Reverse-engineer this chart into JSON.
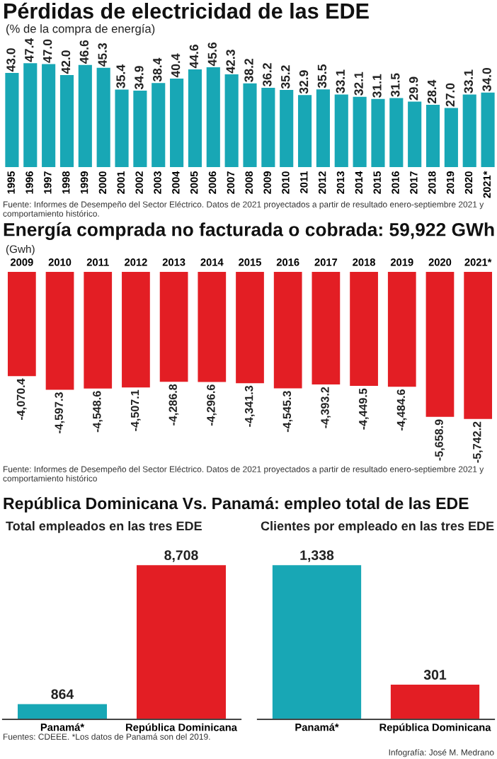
{
  "chart_data": [
    {
      "type": "bar",
      "title": "Pérdidas de electricidad de las EDE",
      "subtitle": "(% de la compra de energía)",
      "categories": [
        "1995",
        "1996",
        "1997",
        "1998",
        "1999",
        "2000",
        "2001",
        "2002",
        "2003",
        "2004",
        "2005",
        "2006",
        "2007",
        "2008",
        "2009",
        "2010",
        "2011",
        "2012",
        "2013",
        "2014",
        "2015",
        "2016",
        "2017",
        "2018",
        "2019",
        "2020",
        "2021*"
      ],
      "values": [
        43.0,
        47.4,
        47.0,
        42.0,
        46.6,
        45.3,
        35.4,
        34.9,
        38.4,
        40.4,
        44.6,
        45.6,
        42.3,
        38.2,
        36.2,
        35.2,
        32.9,
        35.5,
        33.1,
        32.1,
        31.1,
        31.5,
        29.9,
        28.4,
        27.0,
        33.1,
        34.0
      ],
      "value_labels": [
        "43.0",
        "47.4",
        "47.0",
        "42.0",
        "46.6",
        "45.3",
        "35.4",
        "34.9",
        "38.4",
        "40.4",
        "44.6",
        "45.6",
        "42.3",
        "38.2",
        "36.2",
        "35.2",
        "32.9",
        "35.5",
        "33.1",
        "32.1",
        "31.1",
        "31.5",
        "29.9",
        "28.4",
        "27.0",
        "33.1",
        "34.0"
      ],
      "color": "#18a7b5",
      "grid": false,
      "legend": false,
      "annotations": [
        "Fuente: Informes de Desempeño del Sector Eléctrico. Datos de 2021 proyectados a partir de resultado enero-septiembre 2021 y comportamiento histórico."
      ]
    },
    {
      "type": "bar",
      "title": "Energía comprada no facturada o cobrada: 59,922 GWh",
      "subtitle": "(Gwh)",
      "categories": [
        "2009",
        "2010",
        "2011",
        "2012",
        "2013",
        "2014",
        "2015",
        "2016",
        "2017",
        "2018",
        "2019",
        "2020",
        "2021*"
      ],
      "values": [
        -4070.4,
        -4597.3,
        -4548.6,
        -4507.1,
        -4286.8,
        -4296.6,
        -4341.3,
        -4545.3,
        -4393.2,
        -4449.5,
        -4484.6,
        -5658.9,
        -5742.2
      ],
      "value_labels": [
        "-4,070.4",
        "-4,597.3",
        "-4,548.6",
        "-4,507.1",
        "-4,286.8",
        "-4,296.6",
        "-4,341.3",
        "-4,545.3",
        "-4,393.2",
        "-4,449.5",
        "-4,484.6",
        "-5,658.9",
        "-5,742.2"
      ],
      "color": "#e31e24",
      "grid": false,
      "legend": false,
      "annotations": [
        "Fuente: Informes de Desempeño del Sector Eléctrico. Datos de 2021 proyectados a partir de resultado enero-septiembre 2021 y comportamiento histórico"
      ]
    },
    {
      "type": "bar",
      "title": "República Dominicana Vs. Panamá: empleo total de las EDE",
      "subtitle": "Total empleados en las tres EDE",
      "categories": [
        "Panamá*",
        "República Dominicana"
      ],
      "values": [
        864,
        8708
      ],
      "value_labels": [
        "864",
        "8,708"
      ],
      "colors": [
        "#18a7b5",
        "#e31e24"
      ],
      "grid": false,
      "legend": false,
      "annotations": [
        "Fuentes: CDEEE. *Los datos de Panamá son del 2019."
      ]
    },
    {
      "type": "bar",
      "subtitle": "Clientes por empleado en las tres EDE",
      "categories": [
        "Panamá*",
        "República Dominicana"
      ],
      "values": [
        1338,
        301
      ],
      "value_labels": [
        "1,338",
        "301"
      ],
      "colors": [
        "#18a7b5",
        "#e31e24"
      ],
      "grid": false,
      "legend": false,
      "annotations": [
        "Infografía: José M. Medrano"
      ]
    }
  ]
}
